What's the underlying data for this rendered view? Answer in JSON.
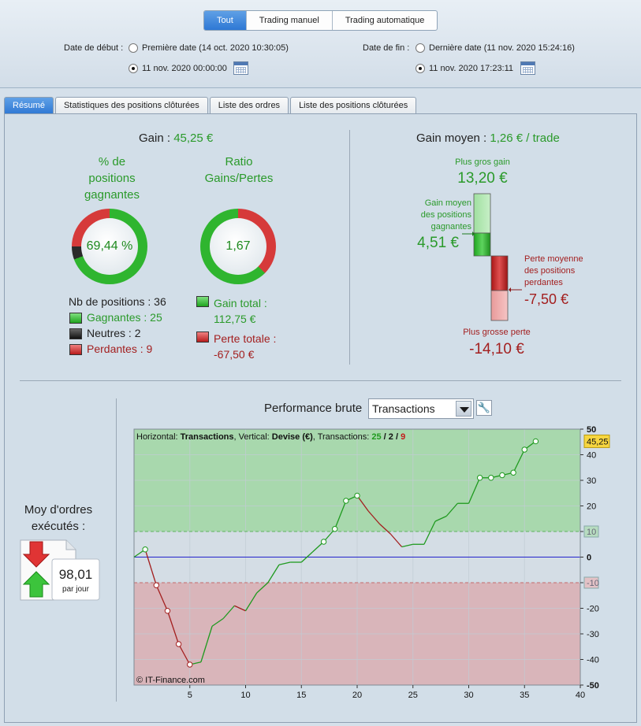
{
  "header": {
    "segments": [
      {
        "label": "Tout",
        "active": true
      },
      {
        "label": "Trading manuel",
        "active": false
      },
      {
        "label": "Trading automatique",
        "active": false
      }
    ],
    "start_label": "Date de début :",
    "start_option1": "Première date (14 oct. 2020 10:30:05)",
    "start_option2": "11 nov. 2020 00:00:00",
    "end_label": "Date de fin :",
    "end_option1": "Dernière date (11 nov. 2020 15:24:16)",
    "end_option2": "11 nov. 2020 17:23:11"
  },
  "tabs": [
    {
      "label": "Résumé",
      "active": true
    },
    {
      "label": "Statistiques des positions clôturées",
      "active": false
    },
    {
      "label": "Liste des ordres",
      "active": false
    },
    {
      "label": "Liste des positions clôturées",
      "active": false
    }
  ],
  "summary": {
    "gain_label": "Gain :",
    "gain_value": "45,25 €",
    "pct_title_1": "% de",
    "pct_title_2": "positions",
    "pct_title_3": "gagnantes",
    "pct_value": "69,44 %",
    "ratio_title_1": "Ratio",
    "ratio_title_2": "Gains/Pertes",
    "ratio_value": "1,67",
    "nb_positions": "Nb de positions : 36",
    "gagnantes": "Gagnantes : 25",
    "neutres": "Neutres : 2",
    "perdantes": "Perdantes : 9",
    "gain_total_label": "Gain total :",
    "gain_total_value": "112,75 €",
    "perte_totale_label": "Perte totale :",
    "perte_totale_value": "-67,50 €",
    "donut_pct": {
      "win_fraction": 0.6944,
      "neutral_fraction": 0.0556,
      "loss_fraction": 0.25
    },
    "donut_ratio": {
      "gain_fraction": 0.6255,
      "loss_fraction": 0.3745
    }
  },
  "average": {
    "title": "Gain moyen :",
    "value": "1,26 € / trade",
    "best_label": "Plus gros gain",
    "best_value": "13,20 €",
    "avg_win_label_1": "Gain moyen",
    "avg_win_label_2": "des positions",
    "avg_win_label_3": "gagnantes",
    "avg_win_value": "4,51 €",
    "avg_loss_label_1": "Perte moyenne",
    "avg_loss_label_2": "des positions",
    "avg_loss_label_3": "perdantes",
    "avg_loss_value": "-7,50 €",
    "worst_label": "Plus grosse perte",
    "worst_value": "-14,10 €"
  },
  "orders": {
    "title_1": "Moy d'ordres",
    "title_2": "exécutés :",
    "value": "98,01",
    "unit": "par jour"
  },
  "performance": {
    "title": "Performance brute",
    "select_value": "Transactions"
  },
  "chart_data": {
    "type": "line",
    "info_prefix": "Horizontal: ",
    "info_h": "Transactions",
    "info_mid": ", Vertical: ",
    "info_v": "Devise (€)",
    "info_suffix": ", Transactions: ",
    "info_win": "25",
    "info_sep1": " / ",
    "info_neutral": "2",
    "info_sep2": " / ",
    "info_loss": "9",
    "watermark": "© IT-Finance.com",
    "xlim": [
      0,
      40
    ],
    "ylim": [
      -50,
      50
    ],
    "x_ticks": [
      "5",
      "10",
      "15",
      "20",
      "25",
      "30",
      "35",
      "40"
    ],
    "y_ticks": [
      "50",
      "40",
      "30",
      "20",
      "10",
      "0",
      "-10",
      "-20",
      "-30",
      "-40",
      "-50"
    ],
    "threshold_high": 10,
    "threshold_low": -10,
    "last_value_label": "45,25",
    "x": [
      0,
      1,
      2,
      3,
      4,
      5,
      6,
      7,
      8,
      9,
      10,
      11,
      12,
      13,
      14,
      15,
      16,
      17,
      18,
      19,
      20,
      21,
      22,
      23,
      24,
      25,
      26,
      27,
      28,
      29,
      30,
      31,
      32,
      33,
      34,
      35,
      36
    ],
    "y": [
      0,
      3,
      -11,
      -21,
      -34,
      -42,
      -41,
      -27,
      -24,
      -19,
      -21,
      -14,
      -10,
      -3,
      -2,
      -2,
      2,
      6,
      11,
      22,
      24,
      18,
      13,
      9,
      4,
      5,
      5,
      14,
      16,
      21,
      21,
      31,
      31,
      32,
      33,
      42,
      45.25
    ],
    "markers": [
      1,
      2,
      3,
      4,
      5,
      17,
      18,
      19,
      20,
      31,
      32,
      33,
      34,
      35,
      36
    ]
  },
  "colors": {
    "win": "#2a9a2a",
    "loss": "#a31f1f",
    "zone_win": "#a8d8ad",
    "zone_loss": "#d9b5ba",
    "zone_mid": "#d4dde5"
  }
}
